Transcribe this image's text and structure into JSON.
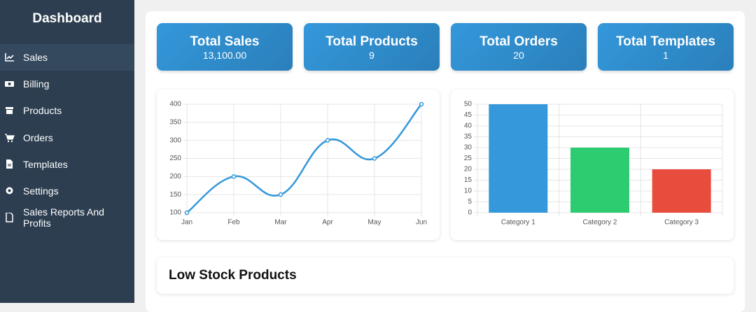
{
  "sidebar": {
    "title": "Dashboard",
    "items": [
      "Sales",
      "Billing",
      "Products",
      "Orders",
      "Templates",
      "Settings",
      "Sales Reports And Profits"
    ]
  },
  "cards": [
    {
      "title": "Total Sales",
      "value": "13,100.00"
    },
    {
      "title": "Total Products",
      "value": "9"
    },
    {
      "title": "Total Orders",
      "value": "20"
    },
    {
      "title": "Total Templates",
      "value": "1"
    }
  ],
  "chart_data": [
    {
      "type": "line",
      "categories": [
        "Jan",
        "Feb",
        "Mar",
        "Apr",
        "May",
        "Jun"
      ],
      "values": [
        100,
        200,
        150,
        300,
        250,
        400
      ],
      "color": "#3498db",
      "ylim": [
        100,
        400
      ],
      "yticks": [
        100,
        150,
        200,
        250,
        300,
        350,
        400
      ],
      "grid": true
    },
    {
      "type": "bar",
      "categories": [
        "Category 1",
        "Category 2",
        "Category 3"
      ],
      "values": [
        50,
        30,
        20
      ],
      "colors": [
        "#3498db",
        "#2ecc71",
        "#e74c3c"
      ],
      "ylim": [
        0,
        50
      ],
      "yticks": [
        0,
        5,
        10,
        15,
        20,
        25,
        30,
        35,
        40,
        45,
        50
      ],
      "grid": true
    }
  ],
  "low_stock": {
    "title": "Low Stock Products"
  }
}
